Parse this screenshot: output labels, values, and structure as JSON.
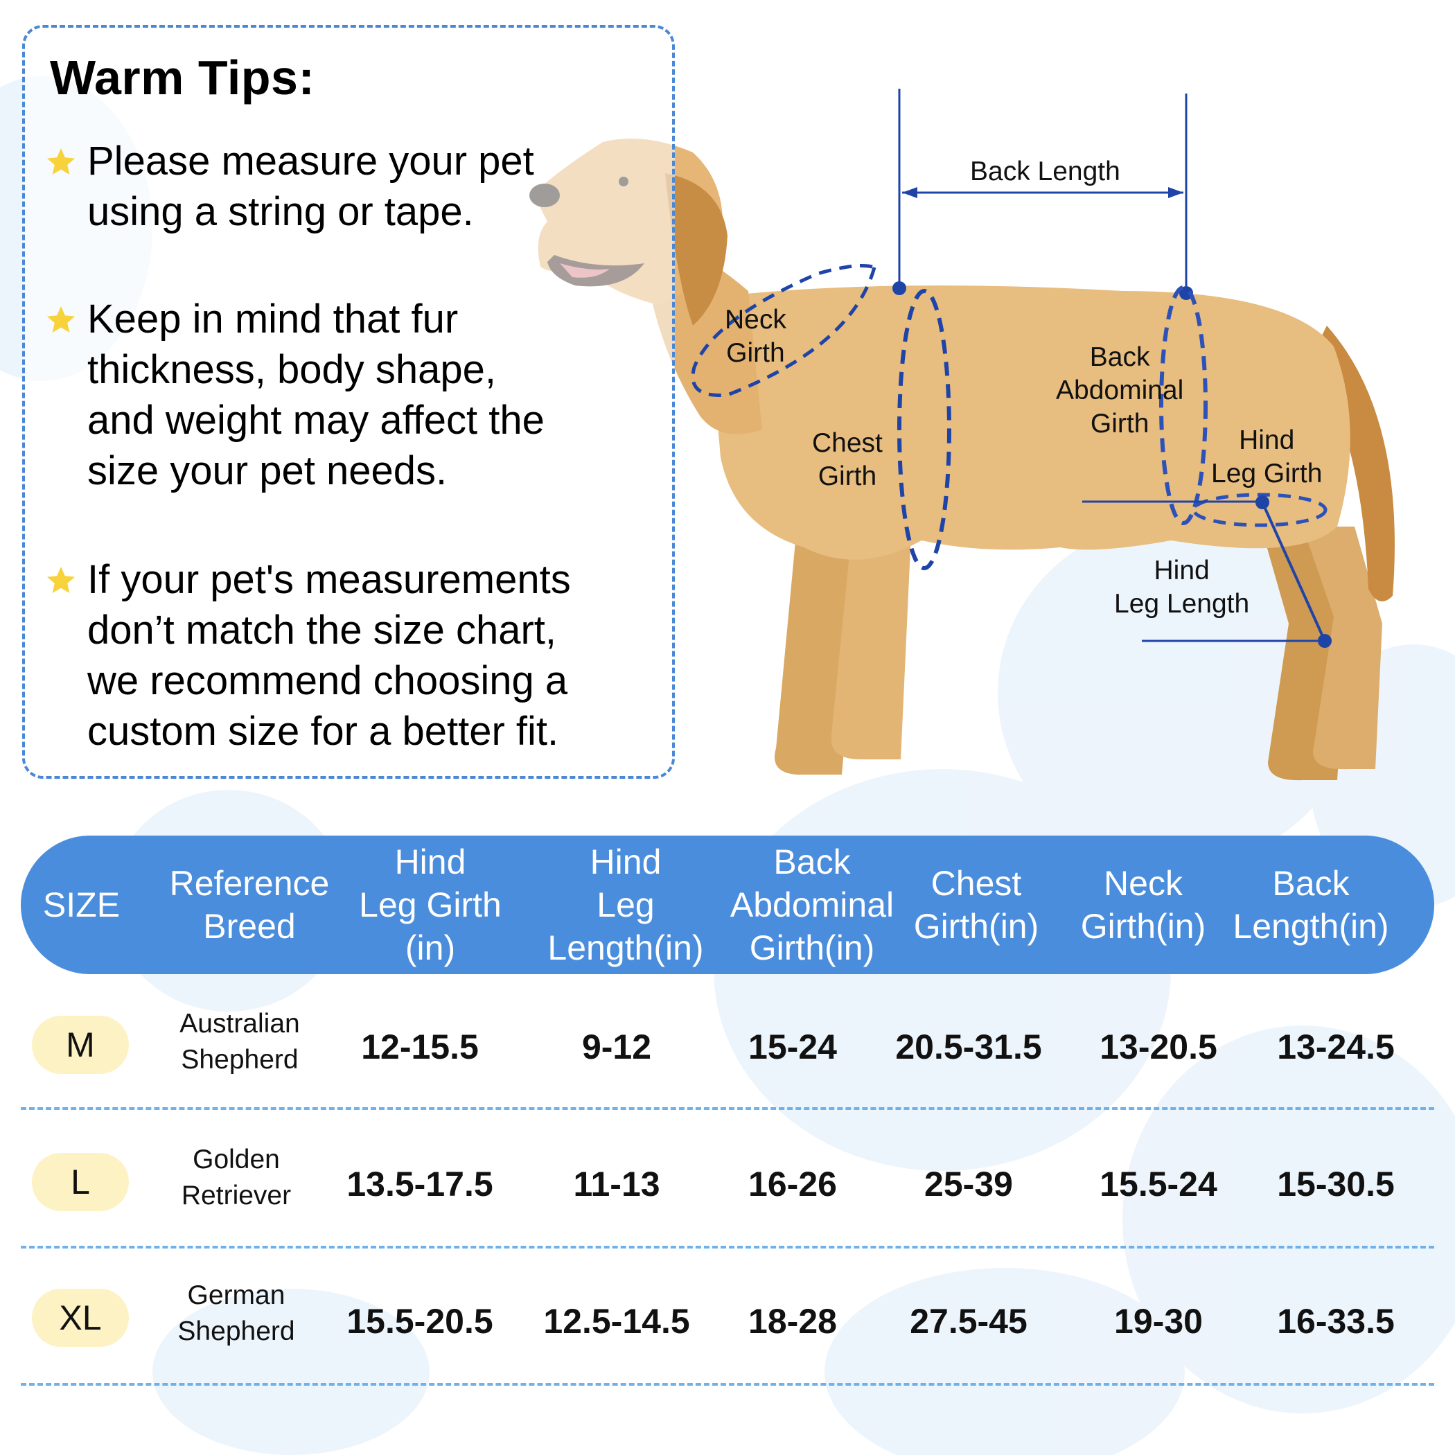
{
  "tips": {
    "title": "Warm Tips:",
    "items": [
      {
        "lines": [
          "Please measure your pet",
          "using a string or tape."
        ]
      },
      {
        "lines": [
          "Keep in mind that fur",
          "thickness, body shape,",
          "and weight may affect the",
          "size your pet needs."
        ]
      },
      {
        "lines": [
          "If your pet's measurements",
          "don’t match the size chart,",
          "we recommend choosing a",
          "custom size for a better fit."
        ]
      }
    ]
  },
  "diagram": {
    "back_length": "Back Length",
    "neck_girth": [
      "Neck",
      "Girth"
    ],
    "chest_girth": [
      "Chest",
      "Girth"
    ],
    "back_abdominal_girth": [
      "Back",
      "Abdominal",
      "Girth"
    ],
    "hind_leg_girth": [
      "Hind",
      "Leg Girth"
    ],
    "hind_leg_length": [
      "Hind",
      "Leg Length"
    ]
  },
  "table": {
    "headers": [
      [
        "SIZE"
      ],
      [
        "Reference",
        "Breed"
      ],
      [
        "Hind",
        "Leg Girth",
        "(in)"
      ],
      [
        "Hind",
        "Leg",
        "Length(in)"
      ],
      [
        "Back",
        "Abdominal",
        "Girth(in)"
      ],
      [
        "Chest",
        "Girth(in)"
      ],
      [
        "Neck",
        "Girth(in)"
      ],
      [
        "Back",
        "Length(in)"
      ]
    ],
    "rows": [
      {
        "size": "M",
        "breed": [
          "Australian",
          "Shepherd"
        ],
        "values": [
          "12-15.5",
          "9-12",
          "15-24",
          "20.5-31.5",
          "13-20.5",
          "13-24.5"
        ]
      },
      {
        "size": "L",
        "breed": [
          "Golden",
          "Retriever"
        ],
        "values": [
          "13.5-17.5",
          "11-13",
          "16-26",
          "25-39",
          "15.5-24",
          "15-30.5"
        ]
      },
      {
        "size": "XL",
        "breed": [
          "German",
          "Shepherd"
        ],
        "values": [
          "15.5-20.5",
          "12.5-14.5",
          "18-28",
          "27.5-45",
          "19-30",
          "16-33.5"
        ]
      }
    ]
  },
  "colors": {
    "accent_blue": "#4a8ddc",
    "measure_line": "#1f44a8",
    "size_pill": "#fdf2c4",
    "star": "#f7d23a"
  }
}
